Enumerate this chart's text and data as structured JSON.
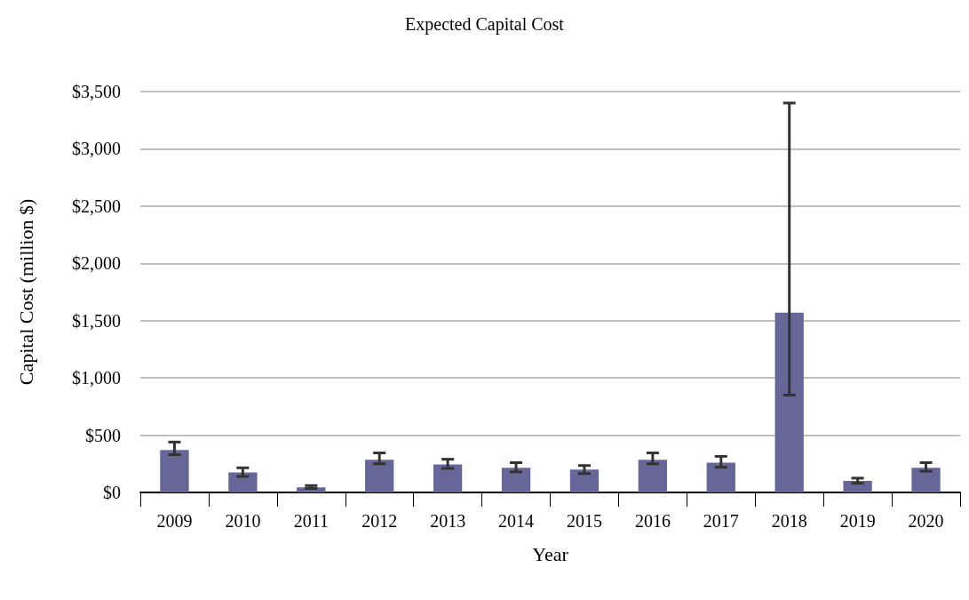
{
  "chart_data": {
    "type": "bar",
    "title": "Expected Capital Cost",
    "xlabel": "Year",
    "ylabel": "Capital Cost (million $)",
    "categories": [
      "2009",
      "2010",
      "2011",
      "2012",
      "2013",
      "2014",
      "2015",
      "2016",
      "2017",
      "2018",
      "2019",
      "2020"
    ],
    "values": [
      370,
      175,
      45,
      285,
      245,
      215,
      200,
      285,
      260,
      1570,
      100,
      215
    ],
    "errors": [
      [
        330,
        440
      ],
      [
        140,
        215
      ],
      [
        35,
        60
      ],
      [
        250,
        345
      ],
      [
        210,
        290
      ],
      [
        180,
        260
      ],
      [
        165,
        235
      ],
      [
        250,
        345
      ],
      [
        220,
        315
      ],
      [
        850,
        3400
      ],
      [
        80,
        125
      ],
      [
        185,
        260
      ]
    ],
    "color": "#666699",
    "ylim": [
      0,
      3500
    ],
    "yticks": [
      {
        "value": 0,
        "label": "$0"
      },
      {
        "value": 500,
        "label": "$500"
      },
      {
        "value": 1000,
        "label": "$1,000"
      },
      {
        "value": 1500,
        "label": "$1,500"
      },
      {
        "value": 2000,
        "label": "$2,000"
      },
      {
        "value": 2500,
        "label": "$2,500"
      },
      {
        "value": 3000,
        "label": "$3,000"
      },
      {
        "value": 3500,
        "label": "$3,500"
      }
    ],
    "grid": "y"
  }
}
